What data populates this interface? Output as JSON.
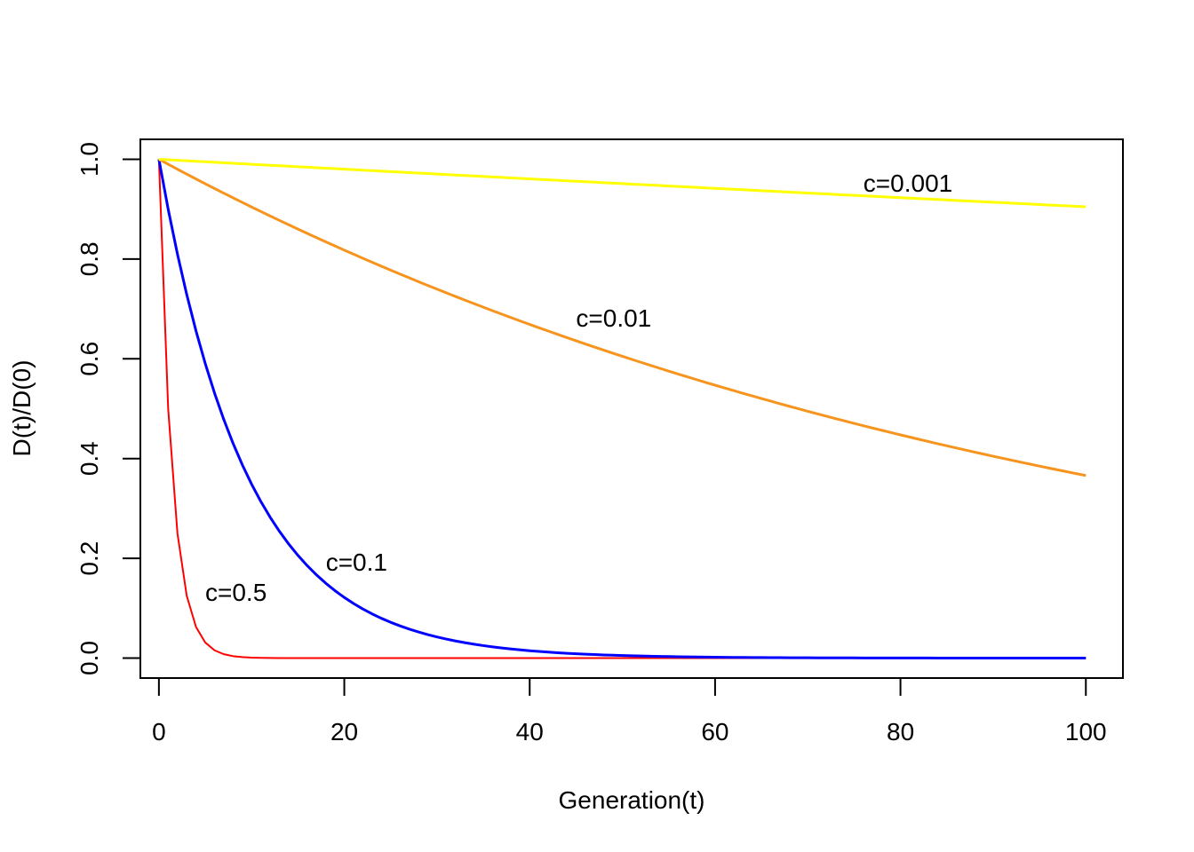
{
  "chart_data": {
    "type": "line",
    "title": "",
    "xlabel": "Generation(t)",
    "ylabel": "D(t)/D(0)",
    "xlim": [
      -2,
      104
    ],
    "ylim": [
      -0.04,
      1.04
    ],
    "xticks": [
      0,
      20,
      40,
      60,
      80,
      100
    ],
    "yticks": [
      0.0,
      0.2,
      0.4,
      0.6,
      0.8,
      1.0
    ],
    "xtick_labels": [
      "0",
      "20",
      "40",
      "60",
      "80",
      "100"
    ],
    "ytick_labels": [
      "0.0",
      "0.2",
      "0.4",
      "0.6",
      "0.8",
      "1.0"
    ],
    "grid": false,
    "legend": "none",
    "series": [
      {
        "name": "c=0.5",
        "c": 0.5,
        "color": "#FF0000",
        "width": 2,
        "label_at": [
          5.0,
          0.115
        ]
      },
      {
        "name": "c=0.1",
        "c": 0.1,
        "color": "#0000FF",
        "width": 3,
        "label_at": [
          18.0,
          0.175
        ]
      },
      {
        "name": "c=0.01",
        "c": 0.01,
        "color": "#F7941D",
        "width": 3,
        "label_at": [
          45.0,
          0.665
        ]
      },
      {
        "name": "c=0.001",
        "c": 0.001,
        "color": "#FFFF00",
        "width": 3,
        "label_at": [
          76.0,
          0.935
        ]
      }
    ],
    "x_start": 0,
    "x_end": 100,
    "x_step": 1
  }
}
